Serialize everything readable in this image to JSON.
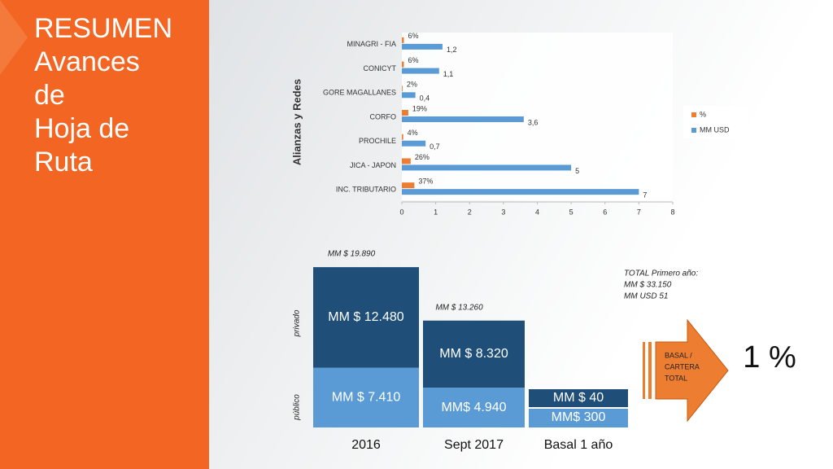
{
  "slide": {
    "title_lines": [
      "RESUMEN",
      "Avances",
      "de",
      "Hoja de",
      "Ruta"
    ]
  },
  "chart_data": [
    {
      "type": "hbar",
      "ylabel": "Alianzas y Redes",
      "categories": [
        "MINAGRI - FIA",
        "CONICYT",
        "GORE MAGALLANES",
        "CORFO",
        "PROCHILE",
        "JICA - JAPON",
        "INC. TRIBUTARIO"
      ],
      "series": [
        {
          "name": "%",
          "color": "#ed7d31",
          "values": [
            0.06,
            0.06,
            0.02,
            0.19,
            0.04,
            0.26,
            0.37
          ],
          "value_labels": [
            "6%",
            "6%",
            "2%",
            "19%",
            "4%",
            "26%",
            "37%"
          ]
        },
        {
          "name": "MM USD",
          "color": "#5b9bd5",
          "values": [
            1.2,
            1.1,
            0.4,
            3.6,
            0.7,
            5,
            7
          ],
          "value_labels": [
            "1,2",
            "1,1",
            "0,4",
            "3,6",
            "0,7",
            "5",
            "7"
          ]
        }
      ],
      "xlim": [
        0,
        8
      ],
      "xticks": [
        0,
        1,
        2,
        3,
        4,
        5,
        6,
        7,
        8
      ],
      "legend": "right"
    },
    {
      "type": "stacked_bar",
      "categories": [
        "2016",
        "Sept 2017",
        "Basal 1 año"
      ],
      "series": [
        {
          "name": "público",
          "color": "#5b9bd5",
          "values": [
            7410,
            4940,
            300
          ],
          "value_labels": [
            "MM $ 7.410",
            "MM$ 4.940",
            "MM$ 300"
          ]
        },
        {
          "name": "privado",
          "color": "#1f4e79",
          "values": [
            12480,
            8320,
            40
          ],
          "value_labels": [
            "MM $ 12.480",
            "MM $ 8.320",
            "MM $ 40"
          ]
        }
      ],
      "total_labels": [
        "MM $ 19.890",
        "MM $ 13.260",
        null
      ],
      "ylim": [
        0,
        20000
      ],
      "annotations": {
        "total": [
          "TOTAL Primero año:",
          "MM $      33.150",
          "MM USD  51"
        ],
        "arrow": [
          "BASAL /",
          "CARTERA",
          "TOTAL"
        ],
        "big": "1 %"
      }
    }
  ]
}
